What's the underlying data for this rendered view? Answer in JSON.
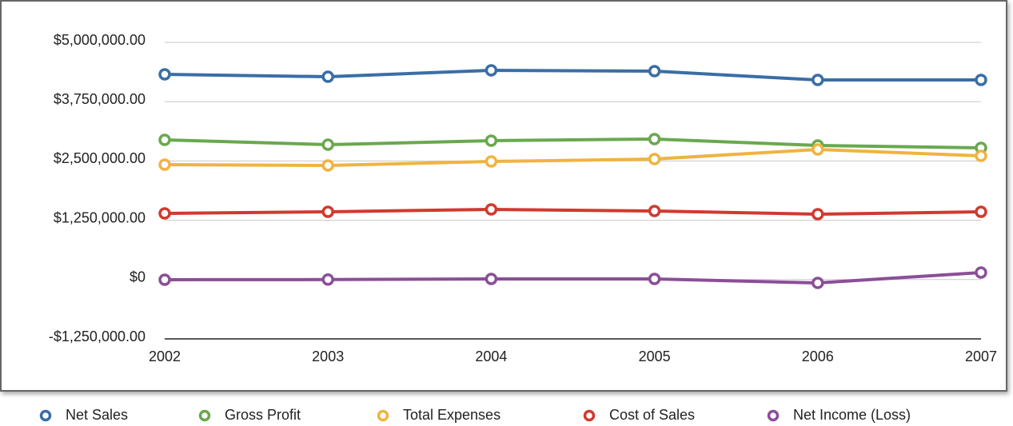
{
  "chart_data": {
    "type": "line",
    "categories": [
      "2002",
      "2003",
      "2004",
      "2005",
      "2006",
      "2007"
    ],
    "series": [
      {
        "name": "Net Sales",
        "color": "#3a6ea5",
        "values": [
          4326000,
          4276000,
          4410000,
          4393000,
          4208000,
          4208000
        ]
      },
      {
        "name": "Gross Profit",
        "color": "#6aa84f",
        "values": [
          2945000,
          2844000,
          2928000,
          2962000,
          2827000,
          2776000
        ]
      },
      {
        "name": "Total Expenses",
        "color": "#f0b341",
        "values": [
          2422000,
          2406000,
          2490000,
          2540000,
          2743000,
          2608000
        ]
      },
      {
        "name": "Cost of Sales",
        "color": "#d03a2f",
        "values": [
          1395000,
          1429000,
          1479000,
          1445000,
          1378000,
          1429000
        ]
      },
      {
        "name": "Net Income (Loss)",
        "color": "#8b4e97",
        "values": [
          -3000,
          0,
          13000,
          13000,
          -70000,
          148000
        ]
      }
    ],
    "ylim": [
      -1250000,
      5000000
    ],
    "yticks": [
      {
        "value": -1250000,
        "label": "-$1,250,000.00"
      },
      {
        "value": 0,
        "label": "$0"
      },
      {
        "value": 1250000,
        "label": "$1,250,000.00"
      },
      {
        "value": 2500000,
        "label": "$2,500,000.00"
      },
      {
        "value": 3750000,
        "label": "$3,750,000.00"
      },
      {
        "value": 5000000,
        "label": "$5,000,000.00"
      }
    ],
    "grid": true,
    "legend": "bottom"
  }
}
